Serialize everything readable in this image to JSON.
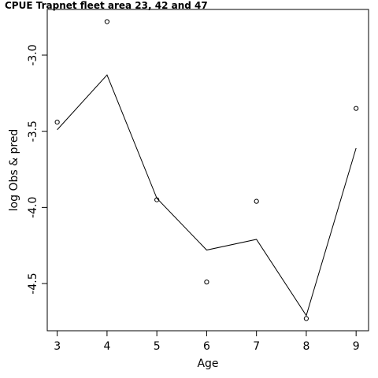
{
  "chart_data": {
    "type": "line",
    "title": "CPUE Trapnet fleet area 23, 42 and 47",
    "xlabel": "Age",
    "ylabel": "log Obs & pred",
    "x": [
      3,
      4,
      5,
      6,
      7,
      8,
      9
    ],
    "xlim": [
      2.8,
      9.25
    ],
    "ylim": [
      -4.81,
      -2.7
    ],
    "xticks": [
      3,
      4,
      5,
      6,
      7,
      8,
      9
    ],
    "yticks": [
      -3.0,
      -3.5,
      -4.0,
      -4.5
    ],
    "ytick_labels": [
      "-3.0",
      "-3.5",
      "-4.0",
      "-4.5"
    ],
    "series": [
      {
        "kind": "points",
        "marker": "open-circle",
        "values": [
          -3.44,
          -2.78,
          -3.95,
          -4.49,
          -3.96,
          -4.73,
          -3.35
        ]
      },
      {
        "kind": "line",
        "values": [
          -3.49,
          -3.13,
          -3.94,
          -4.28,
          -4.21,
          -4.71,
          -3.61
        ]
      }
    ],
    "grid": false,
    "legend": "none"
  }
}
